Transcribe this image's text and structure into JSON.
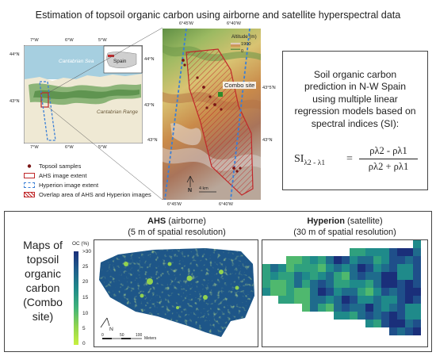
{
  "title": "Estimation of topsoil organic carbon using airborne and satellite hyperspectral data",
  "overview_map": {
    "sea_label": "Cantabrian Sea",
    "range_label": "Cantabrian Range",
    "inset_label": "Spain",
    "lon_ticks": [
      "7°W",
      "6°W",
      "5°W"
    ],
    "lat_ticks": [
      "44°N",
      "43°N"
    ]
  },
  "detail_map": {
    "lon_ticks_top": [
      "6°45'W",
      "6°40'W"
    ],
    "lon_ticks_bottom": [
      "6°45'W",
      "6°40'W"
    ],
    "lat_ticks_right": [
      "43°5'N",
      "43°N"
    ],
    "lat_tick_left": "43°N",
    "altitude_title": "Altitude (m)",
    "altitude_max": "1900",
    "altitude_min": "0",
    "site_label": "Combo site",
    "scale_label": "4 km",
    "north_label": "N"
  },
  "legend": [
    {
      "label": "Topsoil samples",
      "icon": "sample-dot-icon"
    },
    {
      "label": "AHS image extent",
      "icon": "red-rectangle-icon"
    },
    {
      "label": "Hyperion image extent",
      "icon": "blue-dashed-rectangle-icon"
    },
    {
      "label": "Overlap area of AHS and Hyperion images",
      "icon": "red-hatch-icon"
    }
  ],
  "formula_box": {
    "lines": [
      "Soil organic carbon",
      "prediction in N-W Spain",
      "using multiple linear",
      "regression models based on",
      "spectral indices (SI):"
    ],
    "lhs": "SI",
    "lhs_sub": "λ2 - λ1",
    "equals": "=",
    "numerator": "ρλ2 - ρλ1",
    "denominator": "ρλ2 + ρλ1"
  },
  "bottom": {
    "maps_title_lines": [
      "Maps of",
      "topsoil",
      "organic",
      "carbon",
      "(Combo",
      "site)"
    ],
    "ahs_name": "AHS",
    "ahs_type": " (airborne)",
    "ahs_resolution": "(5 m of spatial resolution)",
    "hyperion_name": "Hyperion",
    "hyperion_type": " (satellite)",
    "hyperion_resolution": "(30 m of spatial resolution)",
    "colorbar_title": "OC (%)",
    "colorbar_ticks": [
      ">30",
      "25",
      "20",
      "15",
      "10",
      "5",
      "0"
    ],
    "scale_ticks": [
      "0",
      "50",
      "100"
    ],
    "scale_unit": "Meters",
    "north_label": "N"
  },
  "colors": {
    "ahs_extent": "#c0282a",
    "hyperion_extent": "#3a7fd6",
    "sample": "#7a1515",
    "oc_high": "#1a2f7a",
    "oc_low": "#c8f040"
  }
}
